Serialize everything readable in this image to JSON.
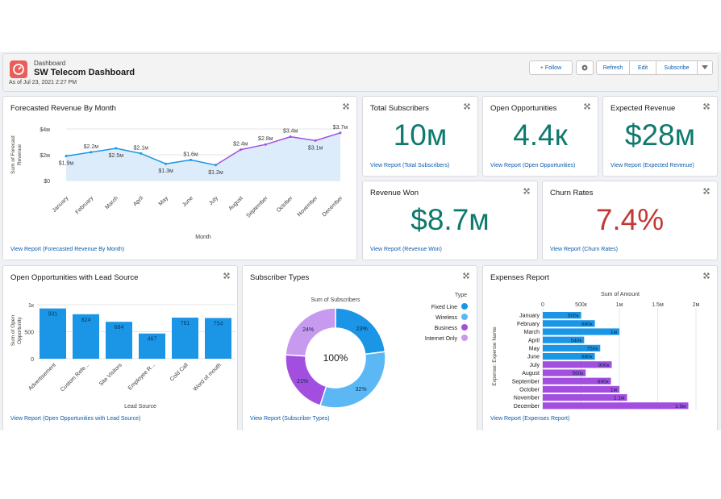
{
  "header": {
    "label": "Dashboard",
    "title": "SW Telecom Dashboard",
    "as_of": "As of Jul 23, 2021 2:27 PM",
    "follow": "+ Follow",
    "refresh": "Refresh",
    "edit": "Edit",
    "subscribe": "Subscribe"
  },
  "colors": {
    "accent": "#0b5cab",
    "teal": "#0e7a6e",
    "red": "#c23934",
    "blue": "#1b96e6",
    "purple": "#a24fe0"
  },
  "forecast": {
    "title": "Forecasted Revenue By Month",
    "link": "View Report (Forecasted Revenue By Month)",
    "xlabel": "Month",
    "ylabel": "Sum of Forecast Revenue"
  },
  "kpis": {
    "total_subscribers": {
      "title": "Total Subscribers",
      "value": "10м",
      "link": "View Report (Total Subscribers)"
    },
    "open_opportunities": {
      "title": "Open Opportunities",
      "value": "4.4к",
      "link": "View Report (Open Opportunities)"
    },
    "expected_revenue": {
      "title": "Expected Revenue",
      "value": "$28м",
      "link": "View Report (Expected Revenue)"
    },
    "revenue_won": {
      "title": "Revenue Won",
      "value": "$8.7м",
      "link": "View Report (Revenue Won)"
    },
    "churn_rates": {
      "title": "Churn Rates",
      "value": "7.4%",
      "link": "View Report (Churn Rates)"
    }
  },
  "leadsource": {
    "title": "Open Opportunities with Lead Source",
    "link": "View Report (Open Opportunities with Lead Source)",
    "xlabel": "Lead Source",
    "ylabel": "Sum of Open Opportunity"
  },
  "subtypes": {
    "title": "Subscriber Types",
    "link": "View Report (Subscriber Types)",
    "center": "100%",
    "chart_title": "Sum of Subscribers",
    "legend_title": "Type"
  },
  "expenses": {
    "title": "Expenses Report",
    "link": "View Report (Expenses Report)",
    "chart_title": "Sum of Amount",
    "ylabel": "Expense: Expense Name"
  },
  "chart_data": [
    {
      "type": "area",
      "title": "Forecasted Revenue By Month",
      "xlabel": "Month",
      "ylabel": "Sum of Forecast Revenue",
      "categories": [
        "January",
        "February",
        "March",
        "April",
        "May",
        "June",
        "July",
        "August",
        "September",
        "October",
        "November",
        "December"
      ],
      "values": [
        1.9,
        2.2,
        2.5,
        2.1,
        1.3,
        1.6,
        1.2,
        2.4,
        2.8,
        3.4,
        3.1,
        3.7
      ],
      "labels": [
        "$1.9м",
        "$2.2м",
        "$2.5м",
        "$2.1м",
        "$1.3м",
        "$1.6м",
        "$1.2м",
        "$2.4м",
        "$2.8м",
        "$3.4м",
        "$3.1м",
        "$3.7м"
      ],
      "yticks": [
        "$0",
        "$2м",
        "$4м"
      ],
      "ylim": [
        0,
        4
      ]
    },
    {
      "type": "bar",
      "title": "Open Opportunities with Lead Source",
      "xlabel": "Lead Source",
      "ylabel": "Sum of Open Opportunity",
      "categories": [
        "Advertisement",
        "Custom Refe...",
        "Site Visitors",
        "Employee R...",
        "Cold Call",
        "Word of mouth"
      ],
      "values": [
        931,
        824,
        684,
        467,
        761,
        754
      ],
      "yticks": [
        "0",
        "500",
        "1к"
      ],
      "ylim": [
        0,
        1000
      ]
    },
    {
      "type": "pie",
      "title": "Sum of Subscribers",
      "legend_title": "Type",
      "center_label": "100%",
      "slices": [
        {
          "name": "Fixed Line",
          "value": 23,
          "label": "23%",
          "color": "#1b96e6"
        },
        {
          "name": "Wireless",
          "value": 32,
          "label": "32%",
          "color": "#5cb8f5"
        },
        {
          "name": "Business",
          "value": 21,
          "label": "21%",
          "color": "#a24fe0"
        },
        {
          "name": "Internet Only",
          "value": 24,
          "label": "24%",
          "color": "#c79af0"
        }
      ]
    },
    {
      "type": "bar",
      "orientation": "horizontal",
      "title": "Sum of Amount",
      "ylabel": "Expense: Expense Name",
      "categories": [
        "January",
        "February",
        "March",
        "April",
        "May",
        "June",
        "July",
        "August",
        "September",
        "October",
        "November",
        "December"
      ],
      "values": [
        0.5,
        0.68,
        1.0,
        0.54,
        0.75,
        0.68,
        0.9,
        0.56,
        0.89,
        1.0,
        1.1,
        1.9
      ],
      "labels": [
        "500к",
        "680к",
        "1м",
        "540к",
        "750к",
        "680к",
        "900к",
        "560к",
        "890к",
        "1м",
        "1.1м",
        "1.9м"
      ],
      "colors": [
        "#1b96e6",
        "#1b96e6",
        "#1b96e6",
        "#1b96e6",
        "#1b96e6",
        "#1b96e6",
        "#a24fe0",
        "#a24fe0",
        "#a24fe0",
        "#a24fe0",
        "#a24fe0",
        "#a24fe0"
      ],
      "xticks": [
        "0",
        "500к",
        "1м",
        "1.5м",
        "2м"
      ],
      "xlim": [
        0,
        2
      ]
    }
  ]
}
